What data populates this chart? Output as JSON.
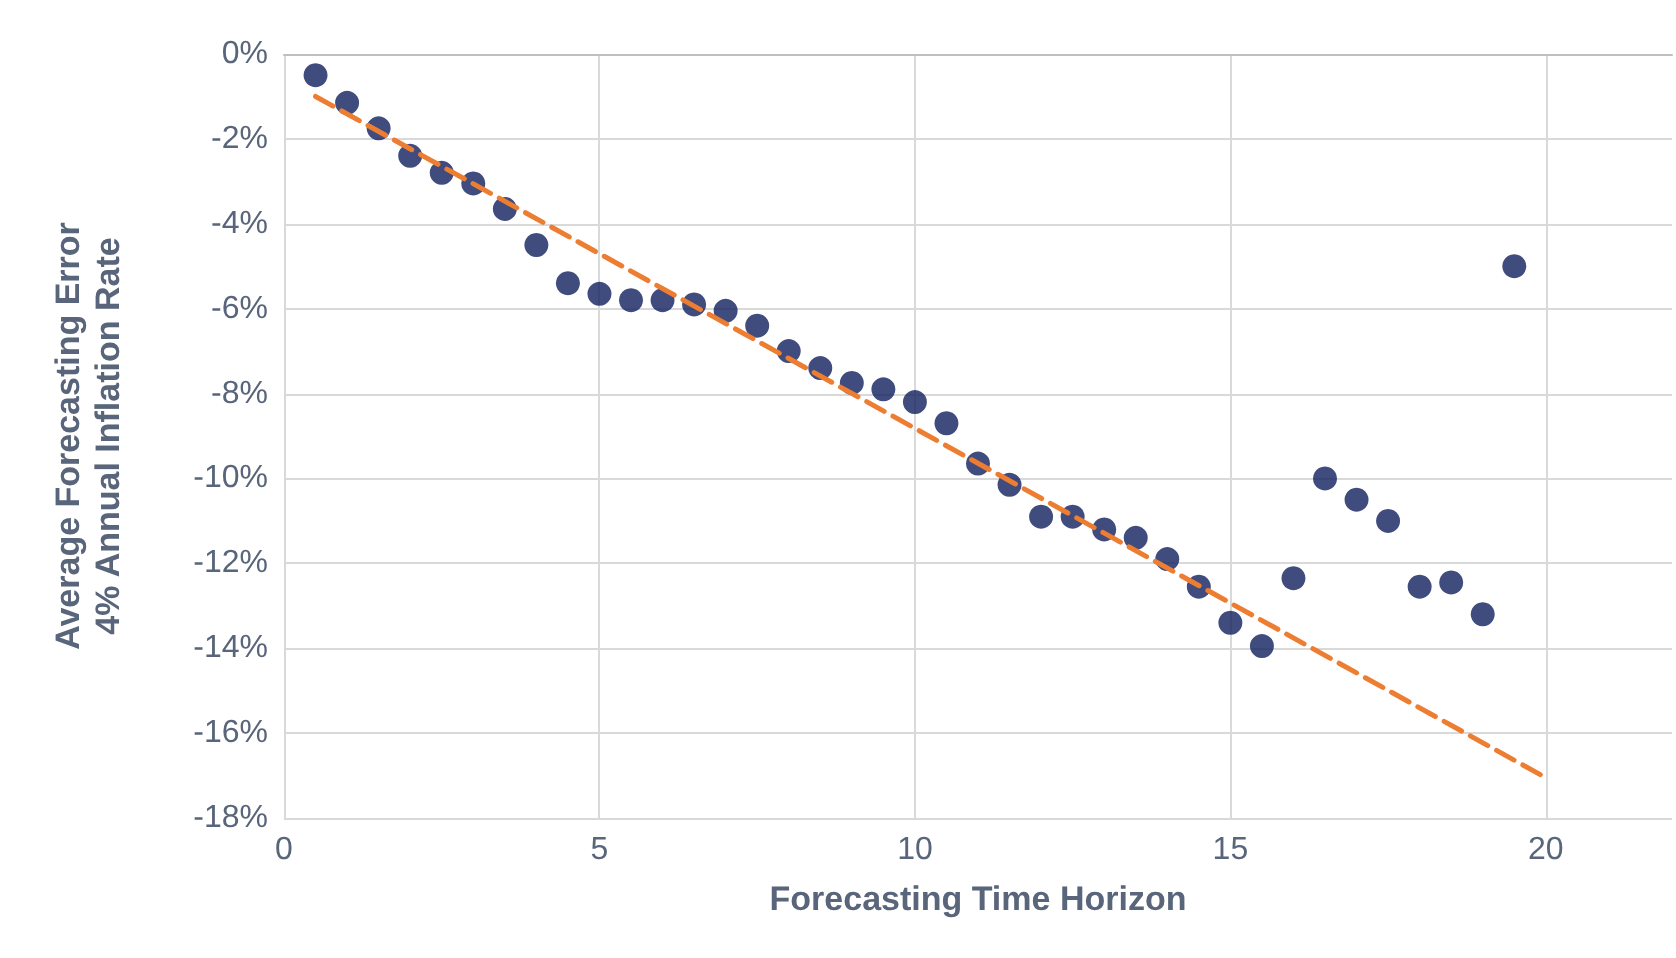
{
  "chart_data": {
    "type": "scatter",
    "xlabel": "Forecasting Time Horizon",
    "ylabel": "Average Forecasting Error\n4% Annual Inflation Rate",
    "xlim": [
      0,
      22
    ],
    "xticks": [
      0,
      5,
      10,
      15,
      20
    ],
    "ylim": [
      -18,
      0
    ],
    "yticks": [
      {
        "value": 0,
        "label": "0%"
      },
      {
        "value": -2,
        "label": "-2%"
      },
      {
        "value": -4,
        "label": "-4%"
      },
      {
        "value": -6,
        "label": "-6%"
      },
      {
        "value": -8,
        "label": "-8%"
      },
      {
        "value": -10,
        "label": "-10%"
      },
      {
        "value": -12,
        "label": "-12%"
      },
      {
        "value": -14,
        "label": "-14%"
      },
      {
        "value": -16,
        "label": "-16%"
      },
      {
        "value": -18,
        "label": "-18%"
      }
    ],
    "grid": true,
    "marker": "circle",
    "series": [
      {
        "color": "#0f1f5c",
        "x": [
          0.5,
          1,
          1.5,
          2,
          2.5,
          3,
          3.5,
          4,
          4.5,
          5,
          5.5,
          6,
          6.5,
          7,
          7.5,
          8,
          8.5,
          9,
          9.5,
          10,
          10.5,
          11,
          11.5,
          12,
          12.5,
          13,
          13.5,
          14,
          14.5,
          15,
          15.5,
          16,
          16.5,
          17,
          17.5,
          18,
          18.5,
          19,
          19.5
        ],
        "values": [
          -0.5,
          -1.15,
          -1.75,
          -2.4,
          -2.8,
          -3.05,
          -3.65,
          -4.5,
          -5.4,
          -5.65,
          -5.8,
          -5.8,
          -5.9,
          -6.05,
          -6.4,
          -7.0,
          -7.4,
          -7.75,
          -7.9,
          -8.2,
          -8.7,
          -9.65,
          -10.15,
          -10.9,
          -10.9,
          -11.2,
          -11.4,
          -11.9,
          -12.55,
          -13.4,
          -13.95,
          -12.35,
          -10.0,
          -10.5,
          -11.0,
          -12.55,
          -12.45,
          -13.2,
          -5.0
        ]
      },
      {
        "type": "line",
        "color": "#ed7d31",
        "line_style": "dashed",
        "marker": "none",
        "x": [
          0.5,
          20
        ],
        "values": [
          -1.0,
          -17.05
        ]
      }
    ]
  }
}
